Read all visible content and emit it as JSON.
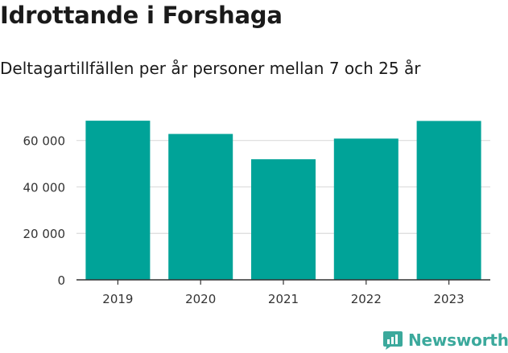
{
  "chart_data": {
    "type": "bar",
    "title": "Idrottande i Forshaga",
    "subtitle": "Deltagartillfällen per år personer mellan 7 och 25 år",
    "xlabel": "",
    "ylabel": "",
    "categories": [
      "2019",
      "2020",
      "2021",
      "2022",
      "2023"
    ],
    "values": [
      68500,
      62800,
      51900,
      60800,
      68400
    ],
    "ylim": [
      0,
      72000
    ],
    "yticks": [
      0,
      20000,
      40000,
      60000
    ],
    "ytick_labels": [
      "0",
      "20 000",
      "40 000",
      "60 000"
    ],
    "grid": true,
    "bar_color": "#00a398"
  },
  "brand": {
    "name": "Newsworthy",
    "icon": "newsworthy-logo-icon",
    "color": "#3ba99c"
  }
}
